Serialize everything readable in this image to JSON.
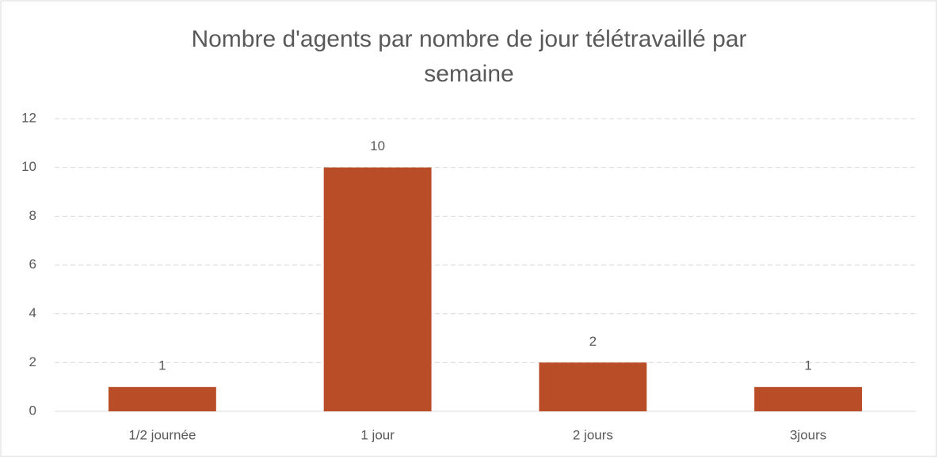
{
  "chart_data": {
    "type": "bar",
    "title": "Nombre d'agents par nombre de jour télétravaillé par semaine",
    "categories": [
      "1/2 journée",
      "1 jour",
      "2 jours",
      "3jours"
    ],
    "values": [
      1,
      10,
      2,
      1
    ],
    "color": "#b94d27",
    "ylim": [
      0,
      12
    ],
    "yticks": [
      0,
      2,
      4,
      6,
      8,
      10,
      12
    ],
    "grid": true,
    "data_labels": true
  }
}
